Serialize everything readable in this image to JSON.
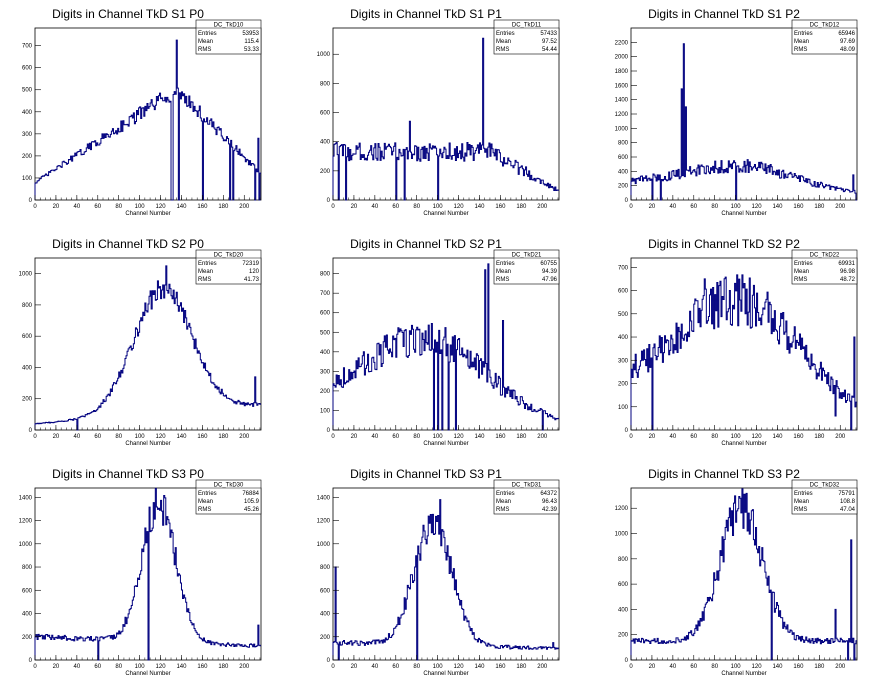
{
  "canvas": {
    "background": "#ffffff",
    "line_color": "#00007f",
    "axis_color": "#000000"
  },
  "chart_data": [
    {
      "type": "histogram",
      "title": "Digits in Channel TkD S1 P0",
      "xlabel": "Channel Number",
      "ylabel": "",
      "xlim": [
        0,
        216
      ],
      "ylim": [
        0,
        780
      ],
      "xticks": [
        0,
        20,
        40,
        60,
        80,
        100,
        120,
        140,
        160,
        180,
        200
      ],
      "yticks": [
        0,
        100,
        200,
        300,
        400,
        500,
        600,
        700
      ],
      "stats": {
        "name": "DC_TkD10",
        "entries": "53953",
        "mean": "115.4",
        "rms": "53.33"
      },
      "shape": {
        "kind": "ramp",
        "base": 80,
        "peak": 500,
        "end": 120,
        "noise": 0.08
      },
      "features": [
        {
          "x": 130,
          "y": 0
        },
        {
          "x": 131,
          "y": 0
        },
        {
          "x": 135,
          "y": 725
        },
        {
          "x": 137,
          "y": 0
        },
        {
          "x": 160,
          "y": 0
        },
        {
          "x": 186,
          "y": 0
        },
        {
          "x": 189,
          "y": 0
        },
        {
          "x": 210,
          "y": 0
        },
        {
          "x": 213,
          "y": 280
        },
        {
          "x": 214,
          "y": 0
        }
      ]
    },
    {
      "type": "histogram",
      "title": "Digits in Channel TkD S1 P1",
      "xlabel": "Channel Number",
      "ylabel": "",
      "xlim": [
        0,
        216
      ],
      "ylim": [
        0,
        1180
      ],
      "xticks": [
        0,
        20,
        40,
        60,
        80,
        100,
        120,
        140,
        160,
        180,
        200
      ],
      "yticks": [
        0,
        200,
        400,
        600,
        800,
        1000
      ],
      "stats": {
        "name": "DC_TkD11",
        "entries": "57433",
        "mean": "97.52",
        "rms": "54.44"
      },
      "shape": {
        "kind": "flat",
        "base": 330,
        "end": 60,
        "noise": 0.2
      },
      "features": [
        {
          "x": 5,
          "y": 0
        },
        {
          "x": 8,
          "y": 380
        },
        {
          "x": 12,
          "y": 0
        },
        {
          "x": 60,
          "y": 0
        },
        {
          "x": 68,
          "y": 0
        },
        {
          "x": 73,
          "y": 540
        },
        {
          "x": 100,
          "y": 0
        },
        {
          "x": 143,
          "y": 1110
        },
        {
          "x": 150,
          "y": 300
        }
      ]
    },
    {
      "type": "histogram",
      "title": "Digits in Channel TkD S1 P2",
      "xlabel": "Channel Number",
      "ylabel": "",
      "xlim": [
        0,
        216
      ],
      "ylim": [
        0,
        2400
      ],
      "xticks": [
        0,
        20,
        40,
        60,
        80,
        100,
        120,
        140,
        160,
        180,
        200
      ],
      "yticks": [
        0,
        200,
        400,
        600,
        800,
        1000,
        1200,
        1400,
        1600,
        1800,
        2000,
        2200
      ],
      "stats": {
        "name": "DC_TkD12",
        "entries": "65946",
        "mean": "97.69",
        "rms": "48.09"
      },
      "shape": {
        "kind": "hump",
        "base": 250,
        "peak": 480,
        "center": 100,
        "width": 50,
        "end": 80,
        "noise": 0.2
      },
      "features": [
        {
          "x": 20,
          "y": 0
        },
        {
          "x": 28,
          "y": 0
        },
        {
          "x": 48,
          "y": 1550
        },
        {
          "x": 50,
          "y": 2180
        },
        {
          "x": 52,
          "y": 1300
        },
        {
          "x": 100,
          "y": 0
        },
        {
          "x": 205,
          "y": 150
        },
        {
          "x": 212,
          "y": 350
        },
        {
          "x": 215,
          "y": 0
        }
      ]
    },
    {
      "type": "histogram",
      "title": "Digits in Channel TkD S2 P0",
      "xlabel": "Channel Number",
      "ylabel": "",
      "xlim": [
        0,
        216
      ],
      "ylim": [
        0,
        1100
      ],
      "xticks": [
        0,
        20,
        40,
        60,
        80,
        100,
        120,
        140,
        160,
        180,
        200
      ],
      "yticks": [
        0,
        200,
        400,
        600,
        800,
        1000
      ],
      "stats": {
        "name": "DC_TkD20",
        "entries": "72319",
        "mean": "120",
        "rms": "41.73"
      },
      "shape": {
        "kind": "peak",
        "base": 40,
        "peak": 900,
        "center": 122,
        "width": 28,
        "end": 160,
        "noise": 0.08
      },
      "features": [
        {
          "x": 40,
          "y": 0
        },
        {
          "x": 125,
          "y": 1050
        },
        {
          "x": 210,
          "y": 340
        }
      ]
    },
    {
      "type": "histogram",
      "title": "Digits in Channel TkD S2 P1",
      "xlabel": "Channel Number",
      "ylabel": "",
      "xlim": [
        0,
        216
      ],
      "ylim": [
        0,
        880
      ],
      "xticks": [
        0,
        20,
        40,
        60,
        80,
        100,
        120,
        140,
        160,
        180,
        200
      ],
      "yticks": [
        0,
        100,
        200,
        300,
        400,
        500,
        600,
        700,
        800
      ],
      "stats": {
        "name": "DC_TkD21",
        "entries": "60755",
        "mean": "94.39",
        "rms": "47.96"
      },
      "shape": {
        "kind": "hump",
        "base": 150,
        "peak": 470,
        "center": 85,
        "width": 55,
        "end": 30,
        "noise": 0.2
      },
      "features": [
        {
          "x": 96,
          "y": 0
        },
        {
          "x": 100,
          "y": 0
        },
        {
          "x": 104,
          "y": 0
        },
        {
          "x": 110,
          "y": 0
        },
        {
          "x": 117,
          "y": 0
        },
        {
          "x": 145,
          "y": 820
        },
        {
          "x": 148,
          "y": 850
        },
        {
          "x": 162,
          "y": 560
        },
        {
          "x": 200,
          "y": 0
        }
      ]
    },
    {
      "type": "histogram",
      "title": "Digits in Channel TkD S2 P2",
      "xlabel": "Channel Number",
      "ylabel": "",
      "xlim": [
        0,
        216
      ],
      "ylim": [
        0,
        740
      ],
      "xticks": [
        0,
        20,
        40,
        60,
        80,
        100,
        120,
        140,
        160,
        180,
        200
      ],
      "yticks": [
        0,
        100,
        200,
        300,
        400,
        500,
        600,
        700
      ],
      "stats": {
        "name": "DC_TkD22",
        "entries": "69931",
        "mean": "96.98",
        "rms": "48.72"
      },
      "shape": {
        "kind": "hump",
        "base": 200,
        "peak": 560,
        "center": 100,
        "width": 55,
        "end": 60,
        "noise": 0.2
      },
      "features": [
        {
          "x": 20,
          "y": 0
        },
        {
          "x": 70,
          "y": 650
        },
        {
          "x": 195,
          "y": 60
        },
        {
          "x": 210,
          "y": 0
        },
        {
          "x": 213,
          "y": 400
        }
      ]
    },
    {
      "type": "histogram",
      "title": "Digits in Channel TkD S3 P0",
      "xlabel": "Channel Number",
      "ylabel": "",
      "xlim": [
        0,
        216
      ],
      "ylim": [
        0,
        1480
      ],
      "xticks": [
        0,
        20,
        40,
        60,
        80,
        100,
        120,
        140,
        160,
        180,
        200
      ],
      "yticks": [
        0,
        200,
        400,
        600,
        800,
        1000,
        1200,
        1400
      ],
      "stats": {
        "name": "DC_TkD30",
        "entries": "76884",
        "mean": "105.9",
        "rms": "45.26"
      },
      "shape": {
        "kind": "peak",
        "base": 200,
        "peak": 1350,
        "center": 118,
        "width": 16,
        "end": 120,
        "noise": 0.12
      },
      "features": [
        {
          "x": 60,
          "y": 0
        },
        {
          "x": 108,
          "y": 0
        },
        {
          "x": 213,
          "y": 300
        }
      ]
    },
    {
      "type": "histogram",
      "title": "Digits in Channel TkD S3 P1",
      "xlabel": "Channel Number",
      "ylabel": "",
      "xlim": [
        0,
        216
      ],
      "ylim": [
        0,
        1480
      ],
      "xticks": [
        0,
        20,
        40,
        60,
        80,
        100,
        120,
        140,
        160,
        180,
        200
      ],
      "yticks": [
        0,
        200,
        400,
        600,
        800,
        1000,
        1200,
        1400
      ],
      "stats": {
        "name": "DC_TkD31",
        "entries": "64372",
        "mean": "96.43",
        "rms": "42.39"
      },
      "shape": {
        "kind": "peak",
        "base": 150,
        "peak": 1200,
        "center": 95,
        "width": 18,
        "end": 100,
        "noise": 0.15
      },
      "features": [
        {
          "x": 2,
          "y": 800
        },
        {
          "x": 5,
          "y": 0
        },
        {
          "x": 80,
          "y": 0
        },
        {
          "x": 102,
          "y": 1380
        },
        {
          "x": 210,
          "y": 150
        }
      ]
    },
    {
      "type": "histogram",
      "title": "Digits in Channel TkD S3 P2",
      "xlabel": "Channel Number",
      "ylabel": "",
      "xlim": [
        0,
        216
      ],
      "ylim": [
        0,
        1360
      ],
      "xticks": [
        0,
        20,
        40,
        60,
        80,
        100,
        120,
        140,
        160,
        180,
        200
      ],
      "yticks": [
        0,
        200,
        400,
        600,
        800,
        1000,
        1200
      ],
      "stats": {
        "name": "DC_TkD32",
        "entries": "75791",
        "mean": "108.8",
        "rms": "47.04"
      },
      "shape": {
        "kind": "peak",
        "base": 150,
        "peak": 1200,
        "center": 105,
        "width": 20,
        "end": 150,
        "noise": 0.15
      },
      "features": [
        {
          "x": 134,
          "y": 0
        },
        {
          "x": 195,
          "y": 400
        },
        {
          "x": 207,
          "y": 0
        },
        {
          "x": 210,
          "y": 950
        },
        {
          "x": 213,
          "y": 0
        }
      ]
    }
  ]
}
